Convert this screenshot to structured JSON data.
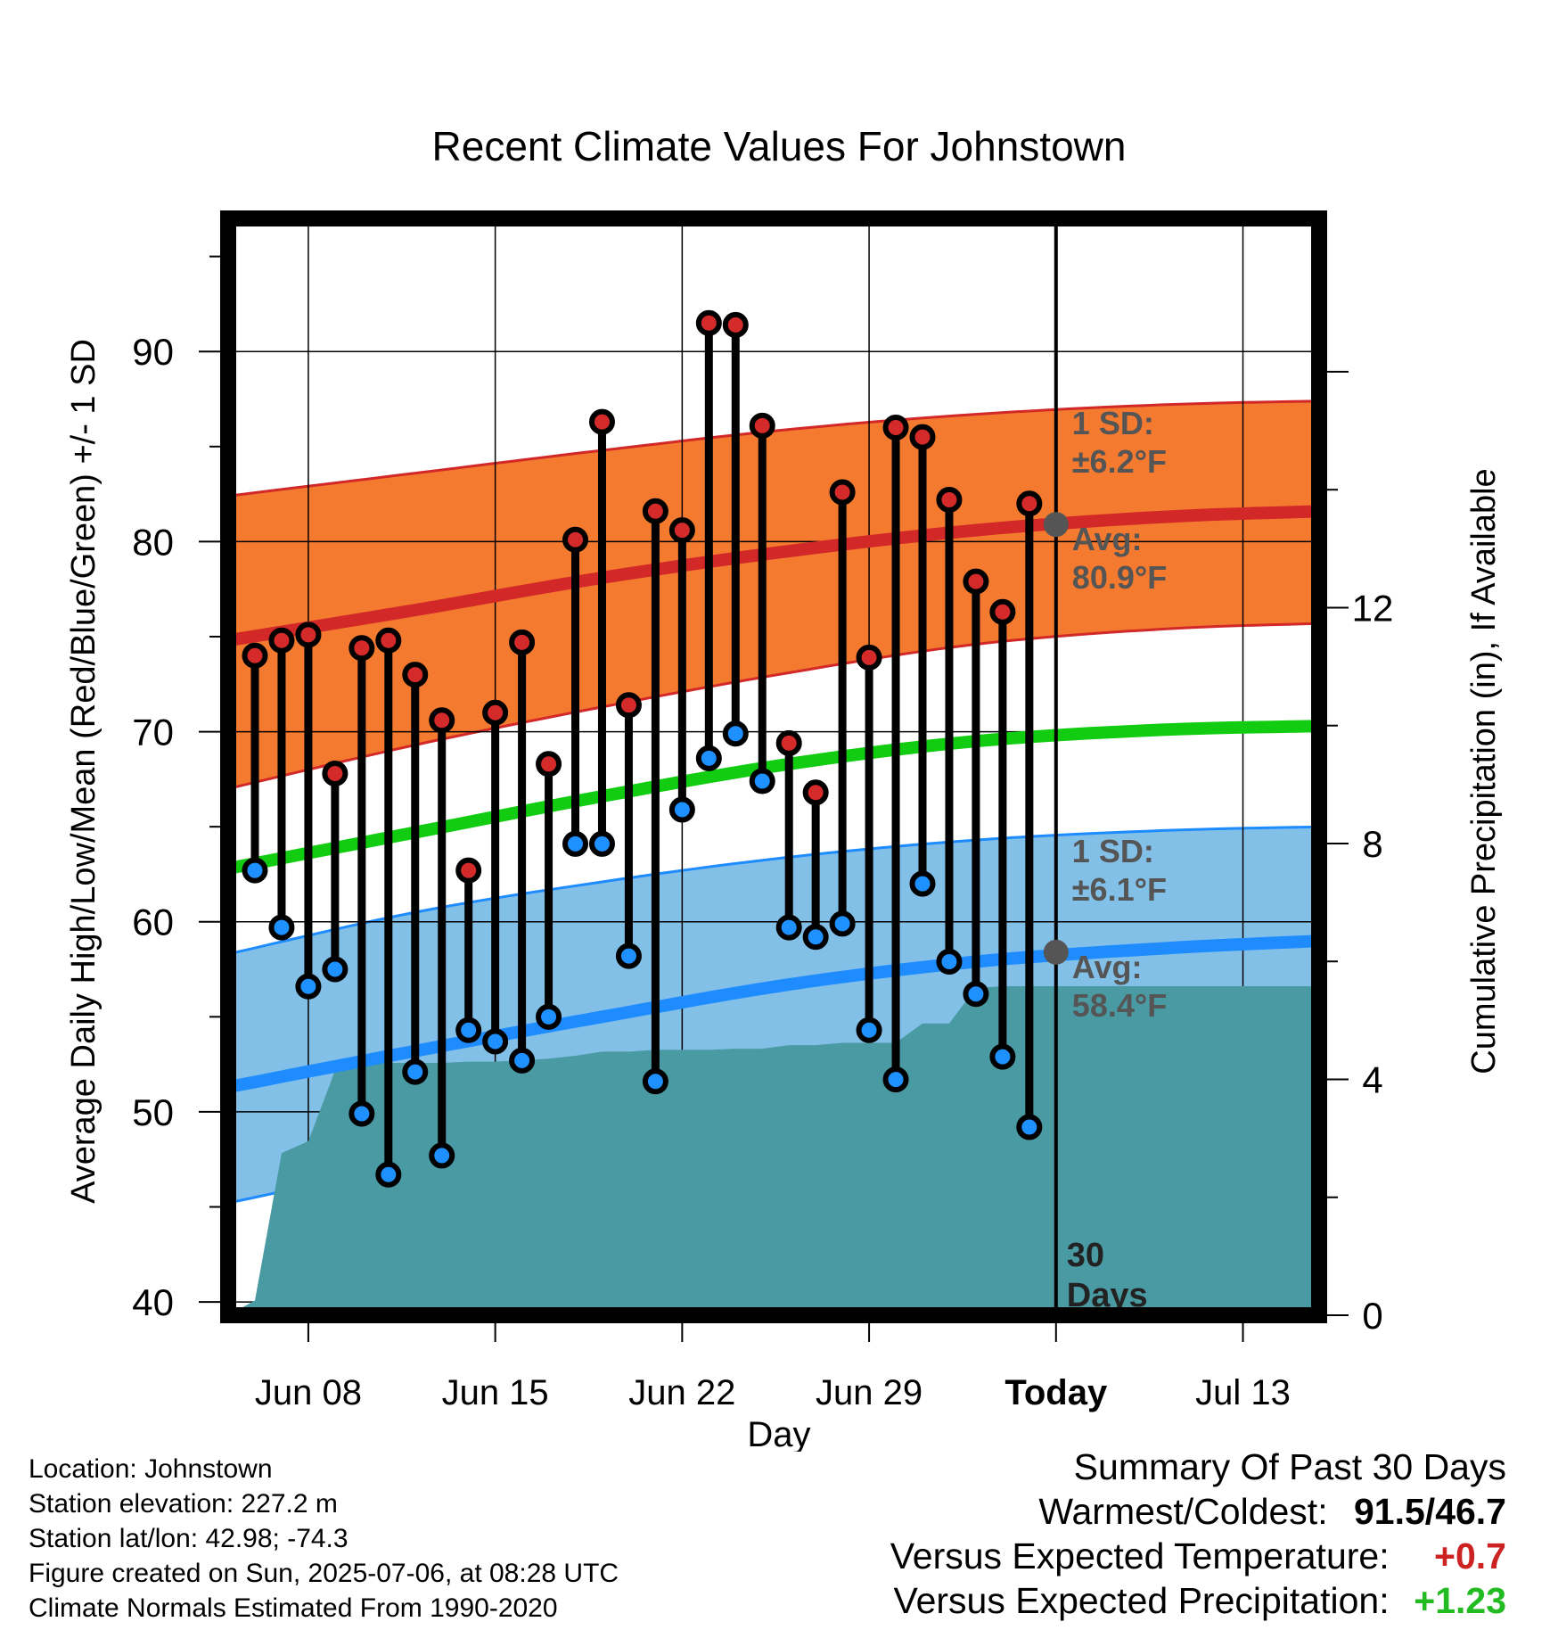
{
  "chart_data": {
    "type": "line",
    "title": "Recent Climate Values For Johnstown",
    "xlabel": "Day",
    "ylabel": "Average Daily High/Low/Mean (Red/Blue/Green) +/- 1 SD",
    "y2label": "Cumulative Precipitation (in), If Available",
    "x_range": [
      "2025-06-05",
      "2025-07-16"
    ],
    "ylim": [
      39.3,
      97.0
    ],
    "y2lim": [
      0,
      18.6
    ],
    "yticks": [
      40,
      50,
      60,
      70,
      80,
      90
    ],
    "y2ticks": [
      0,
      4,
      8,
      12
    ],
    "xticks": [
      {
        "date": "2025-06-08",
        "label": "Jun 08"
      },
      {
        "date": "2025-06-15",
        "label": "Jun 15"
      },
      {
        "date": "2025-06-22",
        "label": "Jun 22"
      },
      {
        "date": "2025-06-29",
        "label": "Jun 29"
      },
      {
        "date": "2025-07-06",
        "label": "Today"
      },
      {
        "date": "2025-07-13",
        "label": "Jul 13"
      }
    ],
    "grid": true,
    "today_date": "2025-07-06",
    "today_label": [
      "30",
      "Days"
    ],
    "colors": {
      "high_band": "#f47a30",
      "high_line": "#d22828",
      "low_band": "#82c0e8",
      "low_line": "#1e8cff",
      "mean_line": "#11cc11",
      "precip": "#4a9aa3",
      "annotation": "#555555"
    },
    "normals": {
      "dates": [
        "2025-06-05",
        "2025-06-12",
        "2025-06-19",
        "2025-06-26",
        "2025-07-03",
        "2025-07-10",
        "2025-07-16"
      ],
      "high_avg": [
        74.8,
        76.4,
        78.1,
        79.5,
        80.6,
        81.3,
        81.6
      ],
      "high_upper": [
        82.4,
        83.6,
        84.8,
        85.9,
        86.7,
        87.2,
        87.4
      ],
      "high_lower": [
        67.0,
        69.3,
        71.3,
        73.1,
        74.6,
        75.4,
        75.7
      ],
      "mean_avg": [
        62.8,
        64.7,
        66.6,
        68.3,
        69.5,
        70.1,
        70.3
      ],
      "low_avg": [
        51.3,
        53.2,
        55.0,
        56.7,
        57.9,
        58.6,
        59.0
      ],
      "low_upper": [
        58.3,
        60.5,
        62.1,
        63.4,
        64.3,
        64.8,
        65.0
      ],
      "low_lower": [
        45.2,
        47.3,
        49.2,
        51.1,
        52.6,
        53.3,
        53.6
      ]
    },
    "series": [
      {
        "name": "High",
        "x": [
          "2025-06-06",
          "2025-06-07",
          "2025-06-08",
          "2025-06-09",
          "2025-06-10",
          "2025-06-11",
          "2025-06-12",
          "2025-06-13",
          "2025-06-14",
          "2025-06-15",
          "2025-06-16",
          "2025-06-17",
          "2025-06-18",
          "2025-06-19",
          "2025-06-20",
          "2025-06-21",
          "2025-06-22",
          "2025-06-23",
          "2025-06-24",
          "2025-06-25",
          "2025-06-26",
          "2025-06-27",
          "2025-06-28",
          "2025-06-29",
          "2025-06-30",
          "2025-07-01",
          "2025-07-02",
          "2025-07-03",
          "2025-07-04",
          "2025-07-05"
        ],
        "values": [
          74.0,
          74.8,
          75.1,
          67.8,
          74.4,
          74.8,
          73.0,
          70.6,
          62.7,
          71.0,
          74.7,
          68.3,
          80.1,
          86.3,
          71.4,
          81.6,
          80.6,
          91.5,
          91.4,
          86.1,
          69.4,
          66.8,
          82.6,
          73.9,
          86.0,
          85.5,
          82.2,
          77.9,
          76.3,
          82.0
        ]
      },
      {
        "name": "Low",
        "x": [
          "2025-06-06",
          "2025-06-07",
          "2025-06-08",
          "2025-06-09",
          "2025-06-10",
          "2025-06-11",
          "2025-06-12",
          "2025-06-13",
          "2025-06-14",
          "2025-06-15",
          "2025-06-16",
          "2025-06-17",
          "2025-06-18",
          "2025-06-19",
          "2025-06-20",
          "2025-06-21",
          "2025-06-22",
          "2025-06-23",
          "2025-06-24",
          "2025-06-25",
          "2025-06-26",
          "2025-06-27",
          "2025-06-28",
          "2025-06-29",
          "2025-06-30",
          "2025-07-01",
          "2025-07-02",
          "2025-07-03",
          "2025-07-04",
          "2025-07-05"
        ],
        "values": [
          62.7,
          59.7,
          56.6,
          57.5,
          49.9,
          46.7,
          52.1,
          47.7,
          54.3,
          53.7,
          52.7,
          55.0,
          64.1,
          64.1,
          58.2,
          51.6,
          65.9,
          68.6,
          69.9,
          67.4,
          59.7,
          59.2,
          59.9,
          54.3,
          51.7,
          62.0,
          57.9,
          56.2,
          52.9,
          49.2
        ]
      },
      {
        "name": "Cumulative Precipitation",
        "x": [
          "2025-06-05",
          "2025-06-06",
          "2025-06-07",
          "2025-06-08",
          "2025-06-09",
          "2025-06-10",
          "2025-06-11",
          "2025-06-12",
          "2025-06-13",
          "2025-06-14",
          "2025-06-15",
          "2025-06-16",
          "2025-06-17",
          "2025-06-18",
          "2025-06-19",
          "2025-06-20",
          "2025-06-21",
          "2025-06-22",
          "2025-06-23",
          "2025-06-24",
          "2025-06-25",
          "2025-06-26",
          "2025-06-27",
          "2025-06-28",
          "2025-06-29",
          "2025-06-30",
          "2025-07-01",
          "2025-07-02",
          "2025-07-03",
          "2025-07-04",
          "2025-07-05",
          "2025-07-16"
        ],
        "values": [
          0.0,
          0.25,
          2.75,
          2.95,
          4.15,
          4.28,
          4.28,
          4.28,
          4.28,
          4.3,
          4.3,
          4.32,
          4.35,
          4.4,
          4.47,
          4.47,
          4.5,
          4.5,
          4.5,
          4.52,
          4.52,
          4.58,
          4.58,
          4.62,
          4.62,
          4.62,
          4.95,
          4.95,
          5.55,
          5.58,
          5.58,
          5.58
        ]
      }
    ],
    "annotations": {
      "high_sd": [
        "1 SD:",
        "±6.2°F"
      ],
      "high_avg": [
        "Avg:",
        "80.9°F"
      ],
      "low_sd": [
        "1 SD:",
        "±6.1°F"
      ],
      "low_avg": [
        "Avg:",
        "58.4°F"
      ],
      "high_avg_value": 80.9,
      "low_avg_value": 58.4
    }
  },
  "info": {
    "location": "Location: Johnstown",
    "elevation": "Station elevation: 227.2 m",
    "latlon": "Station lat/lon: 42.98; -74.3",
    "created": "Figure created on Sun, 2025-07-06, at 08:28 UTC",
    "normals": "Climate Normals Estimated From 1990-2020"
  },
  "summary": {
    "title": "Summary Of Past 30 Days",
    "warm_label": "Warmest/Coldest:",
    "warm_value": "91.5/46.7",
    "temp_label": "Versus Expected Temperature:",
    "temp_value": "+0.7",
    "precip_label": "Versus Expected Precipitation:",
    "precip_value": "+1.23"
  }
}
